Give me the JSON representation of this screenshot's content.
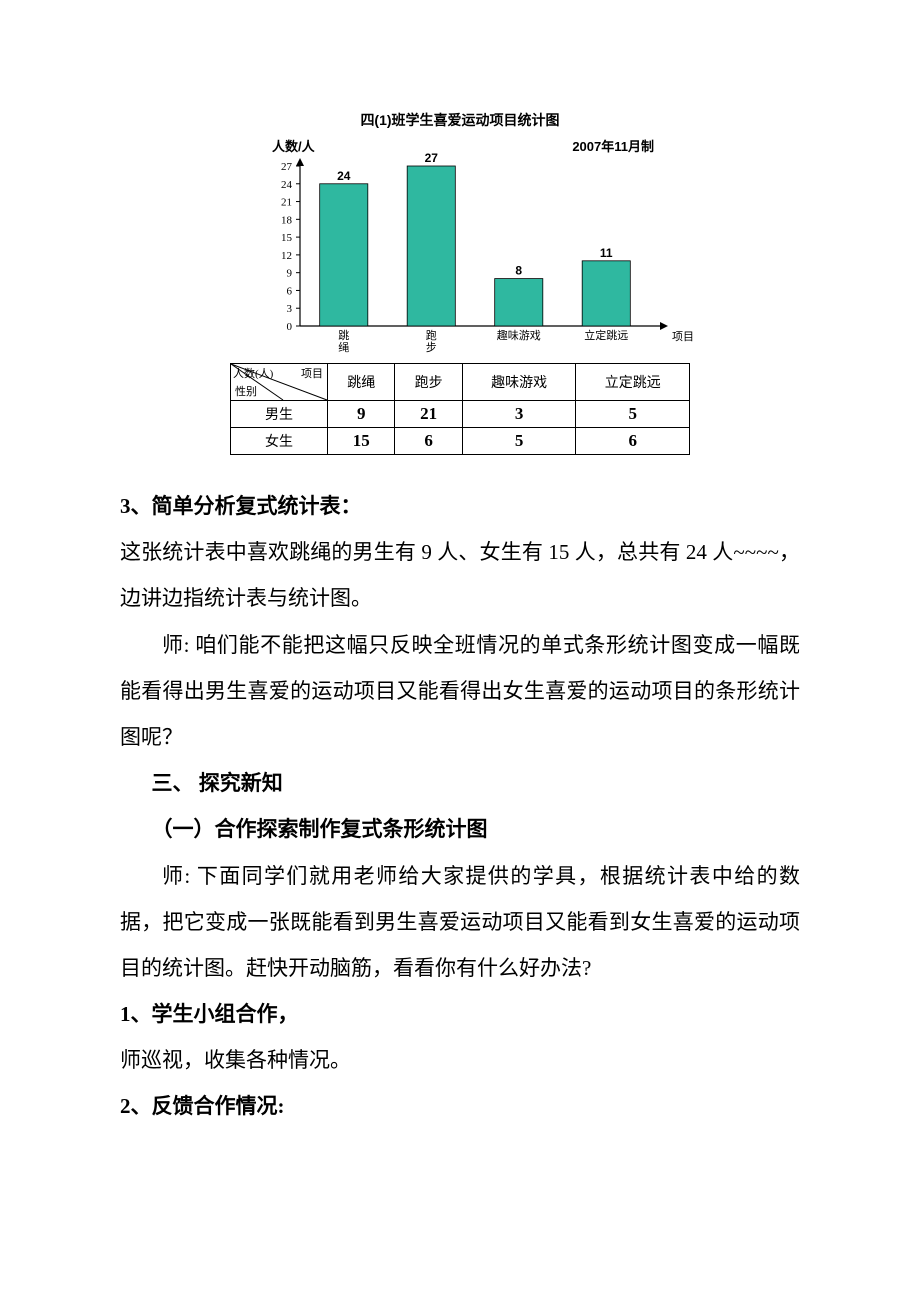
{
  "chart": {
    "type": "bar",
    "title": "四(1)班学生喜爱运动项目统计图",
    "y_axis_title": "人数/人",
    "date_label": "2007年11月制",
    "x_axis_title": "项目",
    "background_color": "#ffffff",
    "bar_color": "#2fb8a0",
    "bar_border_color": "#000000",
    "axis_color": "#000000",
    "label_color": "#000000",
    "title_fontsize": 14,
    "axis_fontsize": 12,
    "tick_fontsize": 11,
    "value_label_fontsize": 12,
    "categories": [
      "跳绳",
      "跑步",
      "趣味游戏",
      "立定跳远"
    ],
    "category_labels": [
      "跳\n绳",
      "跑\n步",
      "趣味游戏",
      "立定跳远"
    ],
    "values": [
      24,
      27,
      8,
      11
    ],
    "ylim": [
      0,
      27
    ],
    "ytick_step": 3,
    "yticks": [
      0,
      3,
      6,
      9,
      12,
      15,
      18,
      21,
      24,
      27
    ],
    "bar_width": 0.55
  },
  "table": {
    "corner": {
      "top": "项目",
      "left": "人数(人)",
      "bottom": "性别"
    },
    "columns": [
      "跳绳",
      "跑步",
      "趣味游戏",
      "立定跳远"
    ],
    "rows": [
      {
        "label": "男生",
        "values": [
          9,
          21,
          3,
          5
        ]
      },
      {
        "label": "女生",
        "values": [
          15,
          6,
          5,
          6
        ]
      }
    ]
  },
  "body": {
    "h1": "3、简单分析复式统计表：",
    "p1": "这张统计表中喜欢跳绳的男生有 9 人、女生有 15 人，总共有 24 人~~~~，边讲边指统计表与统计图。",
    "p2": "师: 咱们能不能把这幅只反映全班情况的单式条形统计图变成一幅既能看得出男生喜爱的运动项目又能看得出女生喜爱的运动项目的条形统计图呢？",
    "h2": "三、 探究新知",
    "h3": "（一）合作探索制作复式条形统计图",
    "p3": "师: 下面同学们就用老师给大家提供的学具，根据统计表中给的数据，把它变成一张既能看到男生喜爱运动项目又能看到女生喜爱的运动项目的统计图。赶快开动脑筋，看看你有什么好办法?",
    "h4": "1、学生小组合作，",
    "p4": "师巡视，收集各种情况。",
    "h5": "2、反馈合作情况:"
  }
}
